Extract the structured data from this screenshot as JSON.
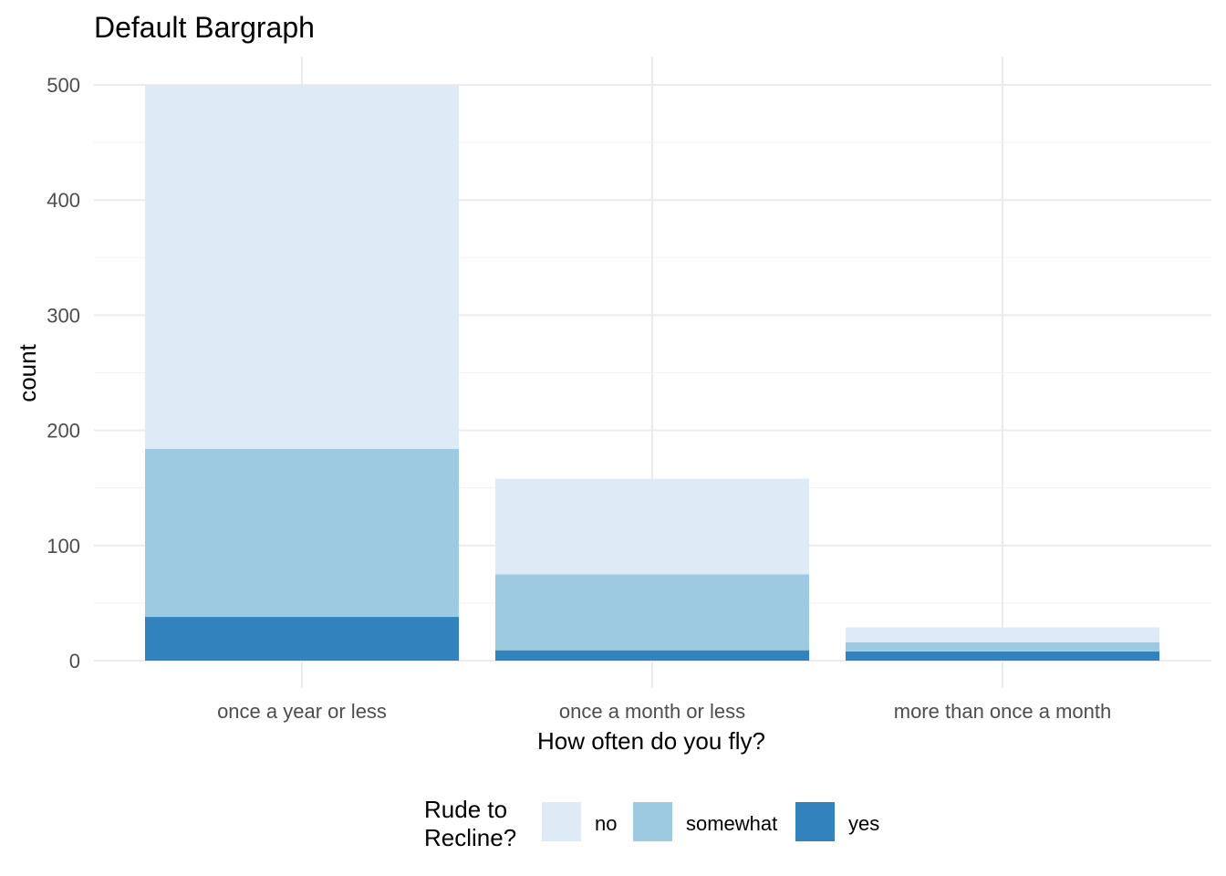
{
  "chart_data": {
    "type": "bar",
    "stacked": true,
    "title": "Default Bargraph",
    "xlabel": "How often do you fly?",
    "ylabel": "count",
    "categories": [
      "once a year or less",
      "once a month or less",
      "more than once a month"
    ],
    "ylim": [
      0,
      525
    ],
    "yticks": [
      0,
      100,
      200,
      300,
      400,
      500
    ],
    "grid": true,
    "legend": {
      "position": "bottom",
      "title_lines": [
        "Rude to",
        "Recline?"
      ]
    },
    "series": [
      {
        "name": "yes",
        "color": "#3182BD",
        "values": [
          38,
          9,
          8
        ]
      },
      {
        "name": "somewhat",
        "color": "#9ECAE1",
        "values": [
          146,
          66,
          8
        ]
      },
      {
        "name": "no",
        "color": "#DEEBF7",
        "values": [
          316,
          83,
          13
        ]
      }
    ],
    "legend_order": [
      "no",
      "somewhat",
      "yes"
    ]
  }
}
